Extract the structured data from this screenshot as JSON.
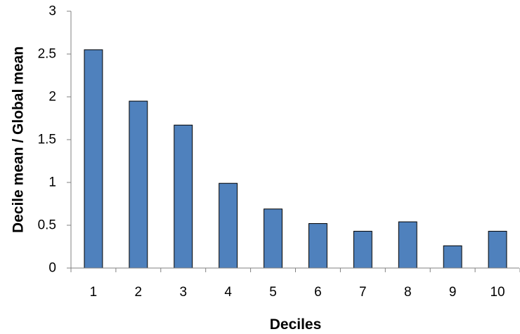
{
  "chart_data": {
    "type": "bar",
    "categories": [
      "1",
      "2",
      "3",
      "4",
      "5",
      "6",
      "7",
      "8",
      "9",
      "10"
    ],
    "values": [
      2.55,
      1.95,
      1.67,
      0.99,
      0.69,
      0.52,
      0.43,
      0.54,
      0.26,
      0.43
    ],
    "xlabel": "Deciles",
    "ylabel": "Decile mean / Global mean",
    "ylim": [
      0,
      3
    ],
    "yticks": [
      "0",
      "0.5",
      "1",
      "1.5",
      "2",
      "2.5",
      "3"
    ],
    "grid": false,
    "legend": "none",
    "bar_color": "#4f81bd",
    "bar_edge_color": "#000000"
  }
}
